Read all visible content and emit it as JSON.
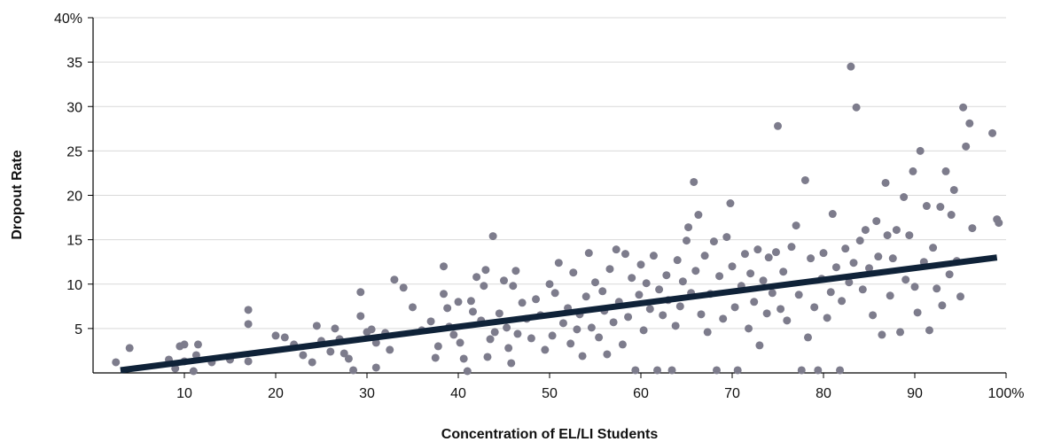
{
  "chart_data": {
    "type": "scatter",
    "title": "",
    "xlabel": "Concentration of EL/LI Students",
    "ylabel": "Dropout Rate",
    "xlim": [
      0,
      100
    ],
    "ylim": [
      0,
      40
    ],
    "x_ticks": [
      10,
      20,
      30,
      40,
      50,
      60,
      70,
      80,
      90,
      100
    ],
    "x_tick_labels": [
      "10",
      "20",
      "30",
      "40",
      "50",
      "60",
      "70",
      "80",
      "90",
      "100%"
    ],
    "y_ticks": [
      5,
      10,
      15,
      20,
      25,
      30,
      35,
      40
    ],
    "y_tick_labels": [
      "5",
      "10",
      "15",
      "20",
      "25",
      "30",
      "35",
      "40%"
    ],
    "grid": "horizontal",
    "colors": {
      "points": "#7d7c8c",
      "trendline": "#0f2238",
      "grid": "#d9d9d9",
      "axis": "#000000"
    },
    "trendline": {
      "x": [
        3,
        99
      ],
      "y": [
        0.3,
        13.0
      ]
    },
    "points": [
      [
        2.5,
        1.2
      ],
      [
        4,
        2.8
      ],
      [
        8.3,
        1.5
      ],
      [
        9,
        0.5
      ],
      [
        9.5,
        3.0
      ],
      [
        10,
        3.2
      ],
      [
        10,
        1.3
      ],
      [
        11,
        0.2
      ],
      [
        11.5,
        3.2
      ],
      [
        11.3,
        2.0
      ],
      [
        13,
        1.2
      ],
      [
        15,
        1.5
      ],
      [
        17,
        1.3
      ],
      [
        17,
        7.1
      ],
      [
        17,
        5.5
      ],
      [
        20,
        4.2
      ],
      [
        21,
        4.0
      ],
      [
        22,
        3.2
      ],
      [
        23,
        2.0
      ],
      [
        24,
        1.2
      ],
      [
        24.5,
        5.3
      ],
      [
        25,
        3.6
      ],
      [
        26,
        2.4
      ],
      [
        26.5,
        5.0
      ],
      [
        27,
        3.8
      ],
      [
        27.5,
        2.2
      ],
      [
        28,
        1.6
      ],
      [
        28.5,
        0.3
      ],
      [
        29.3,
        9.1
      ],
      [
        29.3,
        6.4
      ],
      [
        30,
        4.6
      ],
      [
        30.5,
        4.9
      ],
      [
        31,
        3.4
      ],
      [
        31,
        0.6
      ],
      [
        32,
        4.5
      ],
      [
        32.5,
        2.6
      ],
      [
        33,
        10.5
      ],
      [
        34,
        9.6
      ],
      [
        35,
        7.4
      ],
      [
        36,
        4.8
      ],
      [
        37,
        5.8
      ],
      [
        37.5,
        1.7
      ],
      [
        37.8,
        3.0
      ],
      [
        38.4,
        12.0
      ],
      [
        38.4,
        8.9
      ],
      [
        38.8,
        7.3
      ],
      [
        39,
        5.2
      ],
      [
        39.5,
        4.3
      ],
      [
        40,
        8.0
      ],
      [
        40.2,
        3.4
      ],
      [
        40.6,
        1.6
      ],
      [
        41,
        0.2
      ],
      [
        41.4,
        8.1
      ],
      [
        41.6,
        6.9
      ],
      [
        42,
        10.8
      ],
      [
        42.5,
        5.9
      ],
      [
        42.8,
        9.8
      ],
      [
        43,
        11.6
      ],
      [
        43.2,
        1.8
      ],
      [
        43.5,
        3.8
      ],
      [
        43.8,
        15.4
      ],
      [
        44,
        4.6
      ],
      [
        44.5,
        6.7
      ],
      [
        45,
        10.4
      ],
      [
        45.3,
        5.1
      ],
      [
        45.5,
        2.8
      ],
      [
        45.8,
        1.1
      ],
      [
        46,
        9.8
      ],
      [
        46.3,
        11.5
      ],
      [
        46.5,
        4.4
      ],
      [
        47,
        7.9
      ],
      [
        47.5,
        6.1
      ],
      [
        48,
        3.9
      ],
      [
        48.5,
        8.3
      ],
      [
        49,
        6.5
      ],
      [
        49.5,
        2.6
      ],
      [
        50,
        10.0
      ],
      [
        50.3,
        4.2
      ],
      [
        50.6,
        9.0
      ],
      [
        51,
        12.4
      ],
      [
        51.5,
        5.6
      ],
      [
        52,
        7.3
      ],
      [
        52.3,
        3.3
      ],
      [
        52.6,
        11.3
      ],
      [
        53,
        4.9
      ],
      [
        53.3,
        6.6
      ],
      [
        53.6,
        1.9
      ],
      [
        54,
        8.6
      ],
      [
        54.3,
        13.5
      ],
      [
        54.6,
        5.1
      ],
      [
        55,
        10.2
      ],
      [
        55.4,
        4.0
      ],
      [
        55.8,
        9.2
      ],
      [
        56,
        7.0
      ],
      [
        56.3,
        2.1
      ],
      [
        56.6,
        11.7
      ],
      [
        57,
        5.7
      ],
      [
        57.3,
        13.9
      ],
      [
        57.6,
        8.0
      ],
      [
        58,
        3.2
      ],
      [
        58.3,
        13.4
      ],
      [
        58.6,
        6.3
      ],
      [
        59,
        10.7
      ],
      [
        59.4,
        0.3
      ],
      [
        59.8,
        8.8
      ],
      [
        60,
        12.2
      ],
      [
        60.3,
        4.8
      ],
      [
        60.6,
        10.1
      ],
      [
        61,
        7.2
      ],
      [
        61.4,
        13.2
      ],
      [
        61.8,
        0.3
      ],
      [
        62,
        9.4
      ],
      [
        62.4,
        6.5
      ],
      [
        62.8,
        11.0
      ],
      [
        63,
        8.2
      ],
      [
        63.4,
        0.3
      ],
      [
        63.8,
        5.3
      ],
      [
        64,
        12.7
      ],
      [
        64.3,
        7.5
      ],
      [
        64.6,
        10.3
      ],
      [
        65,
        14.9
      ],
      [
        65.2,
        16.4
      ],
      [
        65.5,
        9.0
      ],
      [
        65.8,
        21.5
      ],
      [
        66,
        11.5
      ],
      [
        66.3,
        17.8
      ],
      [
        66.6,
        6.6
      ],
      [
        67,
        13.2
      ],
      [
        67.3,
        4.6
      ],
      [
        67.6,
        8.9
      ],
      [
        68,
        14.8
      ],
      [
        68.3,
        0.3
      ],
      [
        68.6,
        10.9
      ],
      [
        69,
        6.1
      ],
      [
        69.4,
        15.3
      ],
      [
        69.8,
        19.1
      ],
      [
        70,
        12.0
      ],
      [
        70.3,
        7.4
      ],
      [
        70.6,
        0.3
      ],
      [
        71,
        9.8
      ],
      [
        71.4,
        13.4
      ],
      [
        71.8,
        5.0
      ],
      [
        72,
        11.2
      ],
      [
        72.4,
        8.0
      ],
      [
        72.8,
        13.9
      ],
      [
        73,
        3.1
      ],
      [
        73.4,
        10.4
      ],
      [
        73.8,
        6.7
      ],
      [
        74,
        13.0
      ],
      [
        74.4,
        9.0
      ],
      [
        74.8,
        13.6
      ],
      [
        75,
        27.8
      ],
      [
        75.3,
        7.2
      ],
      [
        75.6,
        11.4
      ],
      [
        76,
        5.9
      ],
      [
        76.5,
        14.2
      ],
      [
        77,
        16.6
      ],
      [
        77.3,
        8.8
      ],
      [
        77.6,
        0.3
      ],
      [
        78,
        21.7
      ],
      [
        78.3,
        4.0
      ],
      [
        78.6,
        12.9
      ],
      [
        79,
        7.4
      ],
      [
        79.4,
        0.3
      ],
      [
        79.8,
        10.6
      ],
      [
        80,
        13.5
      ],
      [
        80.4,
        6.2
      ],
      [
        80.8,
        9.1
      ],
      [
        81,
        17.9
      ],
      [
        81.4,
        11.9
      ],
      [
        81.8,
        0.3
      ],
      [
        82,
        8.1
      ],
      [
        82.4,
        14.0
      ],
      [
        82.8,
        10.2
      ],
      [
        83,
        34.5
      ],
      [
        83.3,
        12.4
      ],
      [
        83.6,
        29.9
      ],
      [
        84,
        14.9
      ],
      [
        84.3,
        9.4
      ],
      [
        84.6,
        16.1
      ],
      [
        85,
        11.8
      ],
      [
        85.4,
        6.5
      ],
      [
        85.8,
        17.1
      ],
      [
        86,
        13.1
      ],
      [
        86.4,
        4.3
      ],
      [
        86.8,
        21.4
      ],
      [
        87,
        15.5
      ],
      [
        87.3,
        8.7
      ],
      [
        87.6,
        12.9
      ],
      [
        88,
        16.1
      ],
      [
        88.4,
        4.6
      ],
      [
        88.8,
        19.8
      ],
      [
        89,
        10.5
      ],
      [
        89.4,
        15.5
      ],
      [
        89.8,
        22.7
      ],
      [
        90,
        9.7
      ],
      [
        90.3,
        6.8
      ],
      [
        90.6,
        25.0
      ],
      [
        91,
        12.5
      ],
      [
        91.3,
        18.8
      ],
      [
        91.6,
        4.8
      ],
      [
        92,
        14.1
      ],
      [
        92.4,
        9.5
      ],
      [
        92.8,
        18.7
      ],
      [
        93,
        7.6
      ],
      [
        93.4,
        22.7
      ],
      [
        93.8,
        11.1
      ],
      [
        94,
        17.8
      ],
      [
        94.3,
        20.6
      ],
      [
        94.6,
        12.6
      ],
      [
        95,
        8.6
      ],
      [
        95.3,
        29.9
      ],
      [
        95.6,
        25.5
      ],
      [
        96,
        28.1
      ],
      [
        96.3,
        16.3
      ],
      [
        98.5,
        27.0
      ],
      [
        99,
        17.3
      ],
      [
        99.2,
        16.9
      ]
    ]
  }
}
